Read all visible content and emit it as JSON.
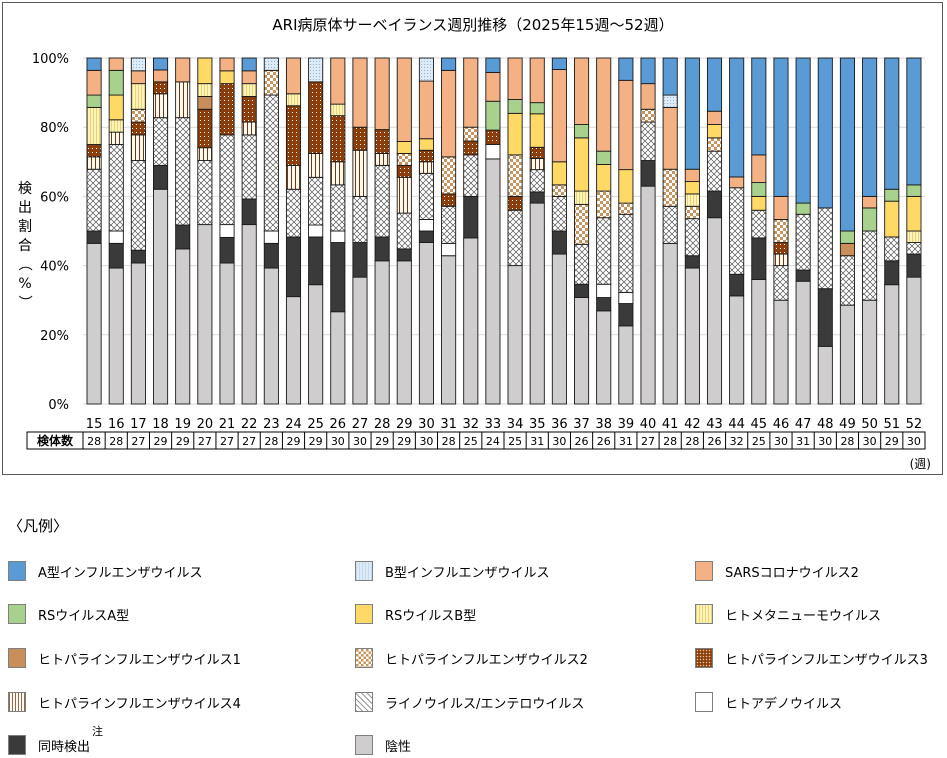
{
  "chart_data": {
    "type": "bar",
    "stacked": true,
    "normalized_percent": true,
    "title": "ARI病原体サーベイランス週別推移（2025年15週～52週）",
    "xlabel": "(週)",
    "ylabel": "検出割合（%）",
    "ylim": [
      0,
      100
    ],
    "yticks": [
      "0%",
      "20%",
      "40%",
      "60%",
      "80%",
      "100%"
    ],
    "grid": true,
    "legend_position": "bottom",
    "categories": [
      "15",
      "16",
      "17",
      "18",
      "19",
      "20",
      "21",
      "22",
      "23",
      "24",
      "25",
      "26",
      "27",
      "28",
      "29",
      "30",
      "31",
      "32",
      "33",
      "34",
      "35",
      "36",
      "37",
      "38",
      "39",
      "40",
      "41",
      "42",
      "43",
      "44",
      "45",
      "46",
      "47",
      "48",
      "49",
      "50",
      "51",
      "52"
    ],
    "sample_counts_label": "検体数",
    "sample_counts": [
      28,
      28,
      27,
      29,
      29,
      27,
      27,
      27,
      28,
      29,
      29,
      30,
      30,
      29,
      29,
      30,
      28,
      25,
      24,
      25,
      31,
      30,
      26,
      26,
      31,
      27,
      28,
      28,
      26,
      32,
      25,
      30,
      31,
      30,
      28,
      30,
      29,
      30
    ],
    "series": [
      {
        "key": "neg",
        "name": "陰性",
        "color": "#cfcdce",
        "pattern": "solid",
        "values": [
          13,
          11,
          11,
          18,
          13,
          14,
          11,
          14,
          11,
          9,
          10,
          8,
          11,
          12,
          12,
          14,
          12,
          12,
          17,
          10,
          18,
          13,
          8,
          7,
          7,
          17,
          13,
          11,
          14,
          10,
          9,
          9,
          11,
          5,
          8,
          9,
          10,
          11
        ]
      },
      {
        "key": "coinf",
        "name": "同時検出",
        "note": "注",
        "color": "#3a3a3a",
        "pattern": "solid",
        "values": [
          1,
          2,
          1,
          2,
          2,
          0,
          2,
          2,
          2,
          5,
          4,
          6,
          3,
          2,
          1,
          1,
          0,
          3,
          0,
          0,
          1,
          2,
          1,
          1,
          2,
          2,
          0,
          1,
          2,
          2,
          3,
          0,
          1,
          5,
          0,
          0,
          2,
          2
        ]
      },
      {
        "key": "adeno",
        "name": "ヒトアデノウイルス",
        "color": "#ffffff",
        "pattern": "solid",
        "values": [
          0,
          1,
          0,
          0,
          0,
          0,
          1,
          0,
          1,
          0,
          1,
          1,
          0,
          0,
          0,
          1,
          1,
          0,
          1,
          0,
          0,
          0,
          0,
          1,
          1,
          0,
          0,
          0,
          0,
          0,
          0,
          0,
          0,
          0,
          0,
          0,
          0,
          0
        ]
      },
      {
        "key": "rhino",
        "name": "ライノウイルス/エンテロウイルス",
        "color": "#ffffff",
        "pattern": "crosshatch",
        "values": [
          5,
          7,
          7,
          4,
          9,
          5,
          7,
          5,
          11,
          4,
          4,
          4,
          4,
          6,
          3,
          4,
          3,
          3,
          0,
          4,
          2,
          3,
          3,
          5,
          7,
          3,
          3,
          3,
          3,
          8,
          2,
          3,
          5,
          7,
          4,
          6,
          2,
          1
        ]
      },
      {
        "key": "para4",
        "name": "ヒトパラインフルエンザウイルス4",
        "color": "#fffaf0",
        "pattern": "vstripe-brown",
        "values": [
          1,
          1,
          2,
          2,
          3,
          1,
          0,
          1,
          0,
          2,
          2,
          2,
          4,
          1,
          3,
          1,
          0,
          0,
          0,
          0,
          1,
          0,
          0,
          0,
          0,
          0,
          0,
          0,
          0,
          0,
          0,
          1,
          0,
          0,
          0,
          0,
          0,
          0
        ]
      },
      {
        "key": "para3",
        "name": "ヒトパラインフルエンザウイルス3",
        "color": "#8b3e0c",
        "pattern": "dots",
        "values": [
          1,
          0,
          1,
          1,
          0,
          3,
          4,
          2,
          0,
          5,
          6,
          4,
          2,
          2,
          1,
          1,
          1,
          1,
          1,
          1,
          1,
          0,
          0,
          0,
          0,
          0,
          0,
          0,
          0,
          0,
          0,
          1,
          0,
          0,
          0,
          0,
          0,
          0
        ]
      },
      {
        "key": "para2",
        "name": "ヒトパラインフルエンザウイルス2",
        "color": "#c8955e",
        "pattern": "checker",
        "values": [
          0,
          0,
          1,
          0,
          0,
          0,
          0,
          0,
          2,
          0,
          0,
          0,
          0,
          0,
          1,
          0,
          3,
          1,
          0,
          3,
          0,
          1,
          3,
          2,
          1,
          1,
          3,
          1,
          1,
          0,
          0,
          2,
          0,
          0,
          0,
          0,
          0,
          0
        ]
      },
      {
        "key": "para1",
        "name": "ヒトパラインフルエンザウイルス1",
        "color": "#c98e5a",
        "pattern": "solid",
        "values": [
          0,
          0,
          0,
          0,
          0,
          1,
          0,
          0,
          0,
          0,
          0,
          0,
          0,
          0,
          0,
          0,
          0,
          0,
          0,
          0,
          0,
          0,
          0,
          0,
          0,
          0,
          0,
          0,
          0,
          0,
          0,
          0,
          0,
          0,
          1,
          0,
          0,
          0
        ]
      },
      {
        "key": "hmpv",
        "name": "ヒトメタニューモウイルス",
        "color": "#fff4b8",
        "pattern": "vstripe-yellow",
        "values": [
          3,
          1,
          2,
          0,
          0,
          1,
          0,
          1,
          0,
          1,
          0,
          1,
          0,
          0,
          0,
          0,
          0,
          0,
          0,
          0,
          0,
          0,
          1,
          0,
          0,
          0,
          0,
          1,
          0,
          0,
          0,
          0,
          0,
          0,
          0,
          0,
          0,
          1
        ]
      },
      {
        "key": "rsb",
        "name": "RSウイルスB型",
        "color": "#ffd966",
        "pattern": "solid",
        "values": [
          0,
          2,
          0,
          0,
          0,
          2,
          1,
          0,
          0,
          0,
          0,
          0,
          0,
          0,
          1,
          1,
          0,
          0,
          0,
          3,
          3,
          2,
          4,
          2,
          3,
          0,
          0,
          1,
          1,
          0,
          1,
          0,
          0,
          0,
          0,
          0,
          3,
          3
        ]
      },
      {
        "key": "rsa",
        "name": "RSウイルスA型",
        "color": "#a9d18e",
        "pattern": "solid",
        "values": [
          1,
          2,
          0,
          0,
          0,
          0,
          0,
          0,
          0,
          0,
          0,
          0,
          0,
          0,
          0,
          0,
          0,
          0,
          2,
          1,
          1,
          0,
          1,
          1,
          0,
          0,
          0,
          0,
          0,
          0,
          1,
          0,
          1,
          0,
          1,
          2,
          1,
          1
        ]
      },
      {
        "key": "sars2",
        "name": "SARSコロナウイルス2",
        "color": "#f4b183",
        "pattern": "solid",
        "values": [
          2,
          1,
          1,
          1,
          2,
          0,
          1,
          1,
          0,
          3,
          0,
          4,
          6,
          6,
          7,
          5,
          7,
          5,
          2,
          3,
          4,
          8,
          5,
          7,
          8,
          2,
          5,
          1,
          1,
          1,
          2,
          2,
          0,
          0,
          0,
          1,
          0,
          0
        ]
      },
      {
        "key": "flub",
        "name": "B型インフルエンザウイルス",
        "color": "#ddebf7",
        "pattern": "dots-blue",
        "values": [
          0,
          0,
          1,
          0,
          0,
          0,
          0,
          0,
          1,
          0,
          2,
          0,
          0,
          0,
          0,
          2,
          0,
          0,
          0,
          0,
          0,
          0,
          0,
          0,
          0,
          0,
          1,
          0,
          0,
          0,
          0,
          0,
          0,
          0,
          0,
          0,
          0,
          0
        ]
      },
      {
        "key": "flua",
        "name": "A型インフルエンザウイルス",
        "color": "#5b9bd5",
        "pattern": "solid",
        "values": [
          1,
          0,
          0,
          1,
          0,
          0,
          0,
          1,
          0,
          0,
          0,
          0,
          0,
          0,
          0,
          0,
          1,
          0,
          1,
          0,
          0,
          1,
          0,
          0,
          2,
          2,
          3,
          9,
          4,
          11,
          7,
          12,
          13,
          13,
          14,
          12,
          11,
          11
        ]
      }
    ]
  },
  "legend": {
    "title": "〈凡例〉",
    "items": [
      {
        "key": "flua",
        "label": "A型インフルエンザウイルス"
      },
      {
        "key": "flub",
        "label": "B型インフルエンザウイルス"
      },
      {
        "key": "sars2",
        "label": "SARSコロナウイルス2"
      },
      {
        "key": "rsa",
        "label": "RSウイルスA型"
      },
      {
        "key": "rsb",
        "label": "RSウイルスB型"
      },
      {
        "key": "hmpv",
        "label": "ヒトメタニューモウイルス"
      },
      {
        "key": "para1",
        "label": "ヒトパラインフルエンザウイルス1"
      },
      {
        "key": "para2",
        "label": "ヒトパラインフルエンザウイルス2"
      },
      {
        "key": "para3",
        "label": "ヒトパラインフルエンザウイルス3"
      },
      {
        "key": "para4",
        "label": "ヒトパラインフルエンザウイルス4"
      },
      {
        "key": "rhino",
        "label": "ライノウイルス/エンテロウイルス"
      },
      {
        "key": "adeno",
        "label": "ヒトアデノウイルス"
      },
      {
        "key": "coinf",
        "label": "同時検出",
        "note": "注"
      },
      {
        "key": "neg",
        "label": "陰性"
      }
    ]
  }
}
